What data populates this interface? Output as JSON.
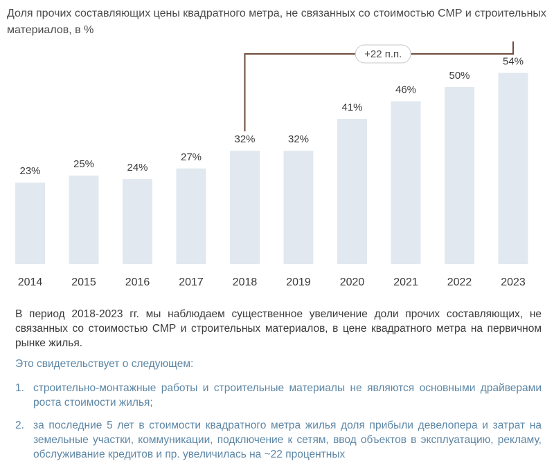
{
  "title": "Доля прочих составляющих цены квадратного метра, не связанных со стоимостью СМР и строительных материалов, в %",
  "chart_data": {
    "type": "bar",
    "categories": [
      "2014",
      "2015",
      "2016",
      "2017",
      "2018",
      "2019",
      "2020",
      "2021",
      "2022",
      "2023"
    ],
    "values": [
      23,
      25,
      24,
      27,
      32,
      32,
      41,
      46,
      50,
      54
    ],
    "value_labels": [
      "23%",
      "25%",
      "24%",
      "27%",
      "32%",
      "32%",
      "41%",
      "46%",
      "50%",
      "54%"
    ],
    "ylim": [
      0,
      60
    ],
    "grid": false,
    "annotation": {
      "text": "+22 п.п.",
      "from": "2018",
      "to": "2023"
    },
    "colors": {
      "bar": "#e1e8ef",
      "bracket": "#6d4c3d"
    }
  },
  "paragraph": "В период 2018-2023 гг. мы наблюдаем существенное увеличение доли прочих составляющих, не связанных со стоимостью СМР и строительных материалов, в цене квадратного метра на первичном рынке жилья.",
  "lead": "Это свидетельствует о следующем:",
  "list": [
    {
      "num": "1.",
      "text": "строительно-монтажные работы и строительные материалы не являются основными драйверами роста стоимости жилья;"
    },
    {
      "num": "2.",
      "text": "за последние 5 лет в стоимости квадратного метра жилья доля прибыли девелопера и затрат на земельные участки, коммуникации, подключение к сетям, ввод объектов в эксплуатацию, рекламу, обслуживание кредитов и пр. увеличилась на ~22 процентных"
    }
  ],
  "colors": {
    "text": "#3a3a3a",
    "accent": "#5c86a5"
  }
}
